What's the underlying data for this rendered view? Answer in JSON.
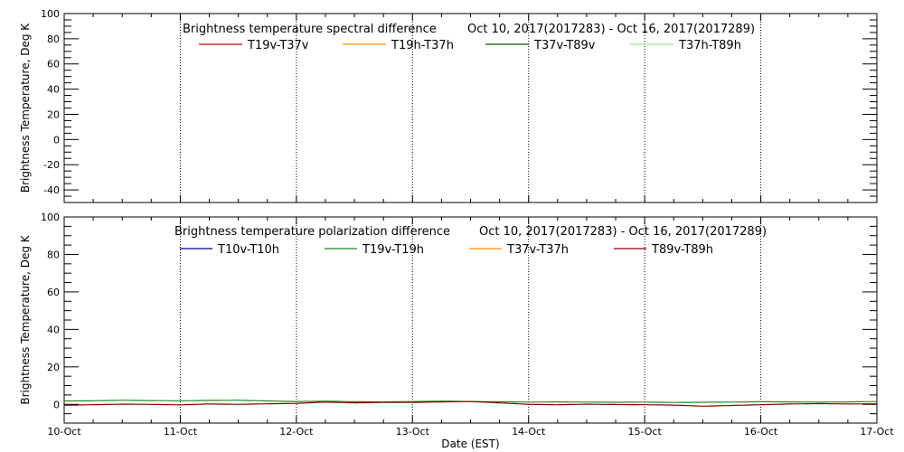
{
  "chart_data": [
    {
      "type": "line",
      "title": "Brightness temperature spectral difference",
      "date_range": "Oct 10, 2017(2017283) - Oct 16, 2017(2017289)",
      "ylabel": "Brightness Temperature, Deg K",
      "xlabel": "",
      "ylim": [
        -50,
        100
      ],
      "yticks": [
        -40,
        -20,
        0,
        20,
        40,
        60,
        80,
        100
      ],
      "xlim": [
        0,
        7
      ],
      "x_ticks": [
        0,
        1,
        2,
        3,
        4,
        5,
        6,
        7
      ],
      "grid": "vertical dotted at each day",
      "legend_position": "top",
      "series": [
        {
          "name": "T19v-T37v",
          "color": "#cc0000",
          "values": []
        },
        {
          "name": "T19h-T37h",
          "color": "#ff8c00",
          "values": []
        },
        {
          "name": "T37v-T89v",
          "color": "#006400",
          "values": []
        },
        {
          "name": "T37h-T89h",
          "color": "#90ee90",
          "values": []
        }
      ]
    },
    {
      "type": "line",
      "title": "Brightness temperature polarization difference",
      "date_range": "Oct 10, 2017(2017283) - Oct 16, 2017(2017289)",
      "ylabel": "Brightness Temperature, Deg K",
      "xlabel": "Date (EST)",
      "ylim": [
        -10,
        100
      ],
      "yticks": [
        0,
        20,
        40,
        60,
        80,
        100
      ],
      "xlim": [
        0,
        7
      ],
      "x_ticks": [
        0,
        1,
        2,
        3,
        4,
        5,
        6,
        7
      ],
      "x_tick_labels": [
        "10-Oct",
        "11-Oct",
        "12-Oct",
        "13-Oct",
        "14-Oct",
        "15-Oct",
        "16-Oct",
        "17-Oct"
      ],
      "grid": "vertical dotted at each day",
      "legend_position": "top",
      "series": [
        {
          "name": "T10v-T10h",
          "color": "#00008b",
          "x": [],
          "values": []
        },
        {
          "name": "T19v-T19h",
          "color": "#228b22",
          "x": [
            0,
            0.25,
            0.5,
            0.75,
            1.0,
            1.25,
            1.5,
            1.75,
            2.0,
            2.25,
            2.5,
            2.75,
            3.0,
            3.25,
            3.5,
            3.75,
            4.0,
            4.25,
            4.5,
            4.75,
            5.0,
            5.25,
            5.5,
            5.75,
            6.0,
            6.25,
            6.5,
            6.75,
            7.0
          ],
          "values": [
            1.8,
            1.9,
            2.2,
            2.0,
            1.9,
            2.1,
            2.2,
            1.8,
            1.5,
            1.7,
            1.4,
            1.3,
            1.5,
            1.7,
            1.5,
            1.4,
            1.2,
            1.3,
            1.2,
            1.1,
            1.2,
            1.0,
            1.1,
            1.2,
            1.4,
            1.3,
            1.2,
            1.3,
            1.5
          ]
        },
        {
          "name": "T37v-T37h",
          "color": "#ff8c00",
          "x": [],
          "values": []
        },
        {
          "name": "T89v-T89h",
          "color": "#8b0000",
          "x": [
            0,
            0.25,
            0.5,
            0.75,
            1.0,
            1.25,
            1.5,
            1.75,
            2.0,
            2.25,
            2.5,
            2.75,
            3.0,
            3.25,
            3.5,
            3.75,
            4.0,
            4.25,
            4.5,
            4.75,
            5.0,
            5.25,
            5.5,
            5.75,
            6.0,
            6.25,
            6.5,
            6.75,
            7.0
          ],
          "values": [
            -0.5,
            -0.2,
            0.1,
            0.0,
            -0.3,
            0.2,
            0.0,
            0.3,
            0.5,
            1.2,
            0.8,
            1.0,
            1.0,
            1.3,
            1.5,
            0.8,
            0.0,
            -0.2,
            0.1,
            -0.1,
            -0.2,
            -0.4,
            -1.0,
            -0.6,
            -0.2,
            0.2,
            0.4,
            0.2,
            0.3
          ]
        }
      ]
    }
  ]
}
